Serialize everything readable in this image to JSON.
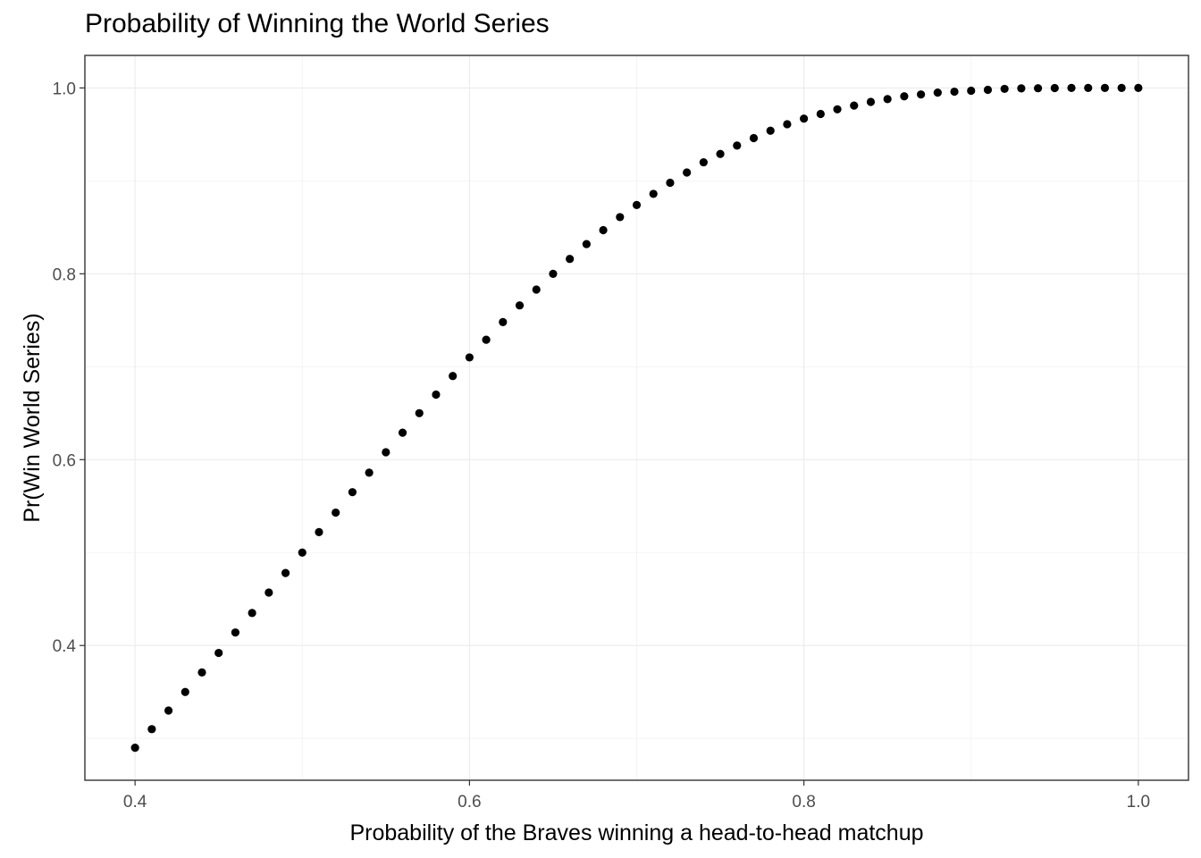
{
  "chart_data": {
    "type": "scatter",
    "title": "Probability of Winning the World Series",
    "xlabel": "Probability of the Braves winning a head-to-head matchup",
    "ylabel": "Pr(Win World Series)",
    "xlim": [
      0.37,
      1.03
    ],
    "ylim": [
      0.255,
      1.035
    ],
    "x_ticks": [
      0.4,
      0.6,
      0.8,
      1.0
    ],
    "x_tick_labels": [
      "0.4",
      "0.6",
      "0.8",
      "1.0"
    ],
    "y_ticks": [
      0.4,
      0.6,
      0.8,
      1.0
    ],
    "y_tick_labels": [
      "0.4",
      "0.6",
      "0.8",
      "1.0"
    ],
    "x_minor_ticks": [
      0.5,
      0.7,
      0.9
    ],
    "y_minor_ticks": [
      0.3,
      0.5,
      0.7,
      0.9
    ],
    "grid": true,
    "theme": "bw",
    "point_color": "#000000",
    "x": [
      0.4,
      0.41,
      0.42,
      0.43,
      0.44,
      0.45,
      0.46,
      0.47,
      0.48,
      0.49,
      0.5,
      0.51,
      0.52,
      0.53,
      0.54,
      0.55,
      0.56,
      0.57,
      0.58,
      0.59,
      0.6,
      0.61,
      0.62,
      0.63,
      0.64,
      0.65,
      0.66,
      0.67,
      0.68,
      0.69,
      0.7,
      0.71,
      0.72,
      0.73,
      0.74,
      0.75,
      0.76,
      0.77,
      0.78,
      0.79,
      0.8,
      0.81,
      0.82,
      0.83,
      0.84,
      0.85,
      0.86,
      0.87,
      0.88,
      0.89,
      0.9,
      0.91,
      0.92,
      0.93,
      0.94,
      0.95,
      0.96,
      0.97,
      0.98,
      0.99,
      1.0
    ],
    "y": [
      0.29,
      0.31,
      0.33,
      0.35,
      0.371,
      0.392,
      0.414,
      0.435,
      0.457,
      0.478,
      0.5,
      0.522,
      0.543,
      0.565,
      0.586,
      0.608,
      0.629,
      0.65,
      0.67,
      0.69,
      0.71,
      0.729,
      0.748,
      0.766,
      0.783,
      0.8,
      0.816,
      0.832,
      0.847,
      0.861,
      0.874,
      0.886,
      0.898,
      0.909,
      0.92,
      0.929,
      0.938,
      0.946,
      0.954,
      0.961,
      0.967,
      0.972,
      0.977,
      0.981,
      0.985,
      0.988,
      0.991,
      0.993,
      0.995,
      0.996,
      0.997,
      0.998,
      0.999,
      0.9995,
      0.9997,
      0.9999,
      1.0,
      1.0,
      1.0,
      1.0,
      1.0
    ]
  }
}
